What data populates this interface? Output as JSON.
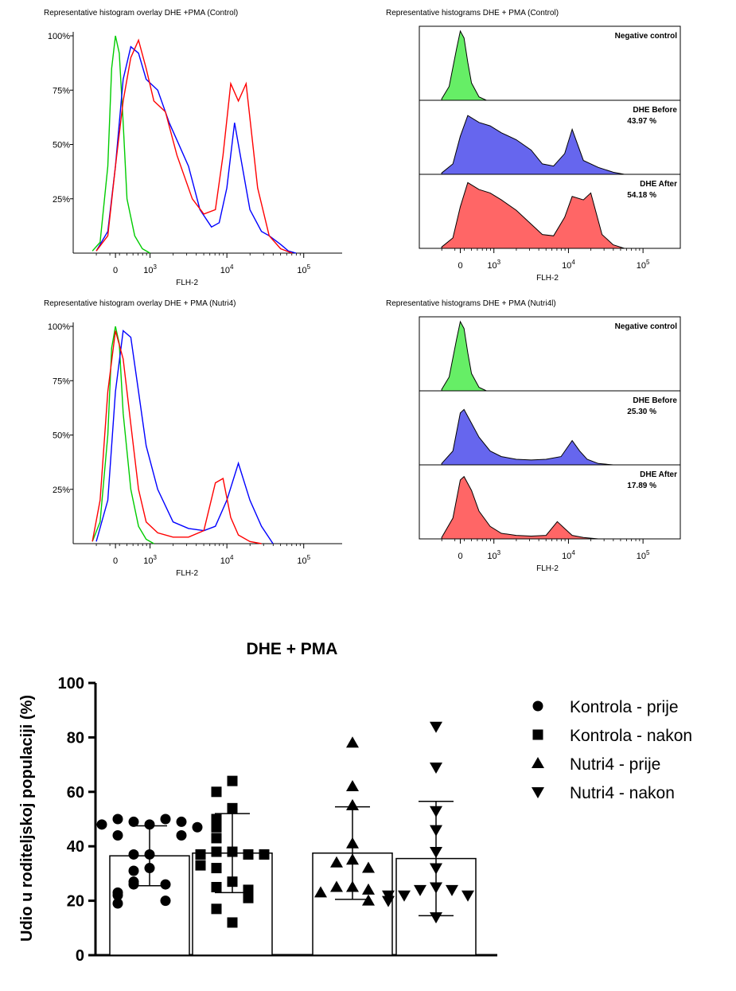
{
  "chart_data": [
    {
      "type": "line",
      "title": "Representative histogram overlay DHE +PMA (Control)",
      "xlabel": "FLH-2",
      "x_ticks": [
        "0",
        "10^3",
        "10^4",
        "10^5"
      ],
      "y_ticks": [
        "100%",
        "75%",
        "50%",
        "25%"
      ],
      "ylim": [
        0,
        100
      ],
      "series": [
        {
          "color": "#00cc00",
          "x": [
            0.25,
            0.35,
            0.45,
            0.5,
            0.55,
            0.6,
            0.65,
            0.7,
            0.8,
            0.9,
            1.0
          ],
          "values": [
            1,
            5,
            40,
            85,
            100,
            92,
            60,
            25,
            8,
            2,
            0
          ]
        },
        {
          "color": "#0000ff",
          "x": [
            0.3,
            0.45,
            0.55,
            0.65,
            0.75,
            0.85,
            0.95,
            1.1,
            1.25,
            1.5,
            1.65,
            1.8,
            1.9,
            2.0,
            2.1,
            2.3,
            2.45,
            2.55,
            2.7,
            2.8,
            2.9
          ],
          "values": [
            1,
            10,
            40,
            80,
            95,
            92,
            80,
            75,
            60,
            40,
            20,
            12,
            14,
            30,
            60,
            20,
            10,
            8,
            4,
            1,
            0
          ]
        },
        {
          "color": "#ff0000",
          "x": [
            0.3,
            0.45,
            0.55,
            0.65,
            0.75,
            0.85,
            0.95,
            1.05,
            1.2,
            1.35,
            1.55,
            1.7,
            1.85,
            1.95,
            2.05,
            2.15,
            2.25,
            2.4,
            2.55,
            2.7,
            2.85
          ],
          "values": [
            1,
            8,
            40,
            70,
            90,
            98,
            85,
            70,
            65,
            45,
            25,
            18,
            20,
            45,
            78,
            70,
            78,
            30,
            8,
            2,
            0
          ]
        }
      ]
    },
    {
      "type": "area",
      "title": "Representative histograms DHE + PMA (Control)",
      "xlabel": "FLH-2",
      "x_ticks": [
        "0",
        "10^3",
        "10^4",
        "10^5"
      ],
      "panels": [
        {
          "label": "Negative control",
          "value": "",
          "color": "#66ee66",
          "x": [
            0.3,
            0.4,
            0.5,
            0.55,
            0.6,
            0.65,
            0.7,
            0.8,
            0.9
          ],
          "values": [
            2,
            20,
            75,
            100,
            90,
            55,
            25,
            5,
            0
          ]
        },
        {
          "label": "DHE Before",
          "value": "43.97 %",
          "color": "#6666ee",
          "x": [
            0.3,
            0.45,
            0.55,
            0.65,
            0.8,
            0.95,
            1.1,
            1.3,
            1.5,
            1.65,
            1.8,
            1.95,
            2.05,
            2.2,
            2.4,
            2.6,
            2.75
          ],
          "values": [
            2,
            15,
            55,
            85,
            75,
            70,
            60,
            50,
            35,
            15,
            12,
            30,
            65,
            20,
            10,
            3,
            0
          ]
        },
        {
          "label": "DHE After",
          "value": "54.18 %",
          "color": "#ff6666",
          "x": [
            0.3,
            0.45,
            0.55,
            0.65,
            0.8,
            0.95,
            1.1,
            1.3,
            1.5,
            1.65,
            1.8,
            1.95,
            2.05,
            2.2,
            2.3,
            2.45,
            2.6,
            2.75
          ],
          "values": [
            2,
            15,
            60,
            95,
            85,
            80,
            70,
            55,
            35,
            20,
            18,
            45,
            75,
            70,
            80,
            20,
            5,
            0
          ]
        }
      ]
    },
    {
      "type": "line",
      "title": "Representative histogram overlay DHE + PMA (Nutri4)",
      "xlabel": "FLH-2",
      "x_ticks": [
        "0",
        "10^3",
        "10^4",
        "10^5"
      ],
      "y_ticks": [
        "100%",
        "75%",
        "50%",
        "25%"
      ],
      "ylim": [
        0,
        100
      ],
      "series": [
        {
          "color": "#00cc00",
          "x": [
            0.25,
            0.35,
            0.45,
            0.5,
            0.55,
            0.6,
            0.65,
            0.75,
            0.85,
            0.95,
            1.05
          ],
          "values": [
            1,
            10,
            50,
            90,
            100,
            92,
            60,
            25,
            8,
            2,
            0
          ]
        },
        {
          "color": "#0000ff",
          "x": [
            0.3,
            0.45,
            0.55,
            0.65,
            0.75,
            0.85,
            0.95,
            1.1,
            1.3,
            1.5,
            1.7,
            1.85,
            2.0,
            2.15,
            2.3,
            2.45,
            2.6
          ],
          "values": [
            1,
            20,
            70,
            98,
            95,
            70,
            45,
            25,
            10,
            7,
            6,
            8,
            20,
            37,
            20,
            8,
            0
          ]
        },
        {
          "color": "#ff0000",
          "x": [
            0.25,
            0.35,
            0.45,
            0.55,
            0.65,
            0.75,
            0.85,
            0.95,
            1.1,
            1.3,
            1.5,
            1.7,
            1.85,
            1.95,
            2.05,
            2.15,
            2.3,
            2.45
          ],
          "values": [
            1,
            20,
            70,
            98,
            85,
            55,
            25,
            10,
            5,
            3,
            3,
            6,
            28,
            30,
            12,
            4,
            1,
            0
          ]
        }
      ]
    },
    {
      "type": "area",
      "title": "Representative histograms DHE + PMA (Nutri4l)",
      "xlabel": "FLH-2",
      "x_ticks": [
        "0",
        "10^3",
        "10^4",
        "10^5"
      ],
      "panels": [
        {
          "label": "Negative control",
          "value": "",
          "color": "#66ee66",
          "x": [
            0.3,
            0.4,
            0.5,
            0.55,
            0.6,
            0.65,
            0.7,
            0.8,
            0.9
          ],
          "values": [
            2,
            20,
            75,
            100,
            90,
            55,
            25,
            5,
            0
          ]
        },
        {
          "label": "DHE Before",
          "value": "25.30 %",
          "color": "#6666ee",
          "x": [
            0.3,
            0.45,
            0.55,
            0.6,
            0.7,
            0.8,
            0.95,
            1.1,
            1.3,
            1.5,
            1.7,
            1.9,
            2.05,
            2.15,
            2.25,
            2.4,
            2.6
          ],
          "values": [
            2,
            20,
            75,
            80,
            60,
            40,
            20,
            12,
            8,
            7,
            8,
            12,
            35,
            20,
            8,
            2,
            0
          ]
        },
        {
          "label": "DHE After",
          "value": "17.89 %",
          "color": "#ff6666",
          "x": [
            0.3,
            0.45,
            0.55,
            0.6,
            0.7,
            0.8,
            0.95,
            1.1,
            1.3,
            1.5,
            1.7,
            1.85,
            1.95,
            2.05,
            2.2,
            2.4
          ],
          "values": [
            2,
            30,
            85,
            90,
            70,
            40,
            18,
            8,
            5,
            4,
            5,
            25,
            15,
            5,
            2,
            0
          ]
        }
      ]
    },
    {
      "type": "scatter",
      "title": "DHE + PMA",
      "ylabel": "Udio u roditeljskoj populaciji (%)",
      "ylim": [
        0,
        100
      ],
      "y_ticks": [
        "0",
        "20",
        "40",
        "60",
        "80",
        "100"
      ],
      "legend_position": "right",
      "series": [
        {
          "name": "Kontrola - prije",
          "marker": "circle",
          "mean": 36.5,
          "sd": 11,
          "points": [
            48,
            49,
            50,
            50,
            49,
            48,
            47,
            44,
            44,
            37,
            37,
            32,
            31,
            27,
            26,
            26,
            23,
            22,
            20,
            19
          ]
        },
        {
          "name": "Kontrola - nakon",
          "marker": "square",
          "mean": 37.5,
          "sd": 14.5,
          "points": [
            64,
            60,
            54,
            50,
            47,
            43,
            38,
            38,
            37,
            37,
            37,
            33,
            32,
            27,
            25,
            24,
            21,
            17,
            12
          ]
        },
        {
          "name": "Nutri4 - prije",
          "marker": "triangle-up",
          "mean": 37.5,
          "sd": 17,
          "points": [
            78,
            62,
            55,
            41,
            35,
            34,
            32,
            25,
            25,
            24,
            23,
            20
          ]
        },
        {
          "name": "Nutri4 - nakon",
          "marker": "triangle-down",
          "mean": 35.5,
          "sd": 21,
          "points": [
            84,
            69,
            53,
            46,
            38,
            32,
            25,
            24,
            24,
            22,
            22,
            22,
            20,
            14
          ]
        }
      ]
    }
  ]
}
